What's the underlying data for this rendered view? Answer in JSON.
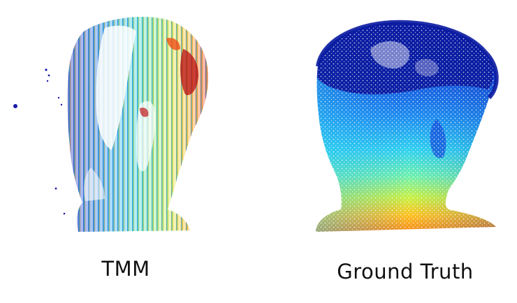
{
  "panels": [
    {
      "caption": "TMM",
      "colormap": [
        "#1a1aa8",
        "#2060e0",
        "#22a8f0",
        "#3ee0d8",
        "#7cf07c",
        "#d8f040",
        "#ffb020",
        "#f05018",
        "#b80e10"
      ]
    },
    {
      "caption": "Ground Truth",
      "colormap": [
        "#0a1aa0",
        "#1248d8",
        "#1e8cf0",
        "#2ed0f0",
        "#6cf0b0",
        "#c8f040",
        "#ffc020",
        "#f07818",
        "#d84010"
      ]
    }
  ]
}
